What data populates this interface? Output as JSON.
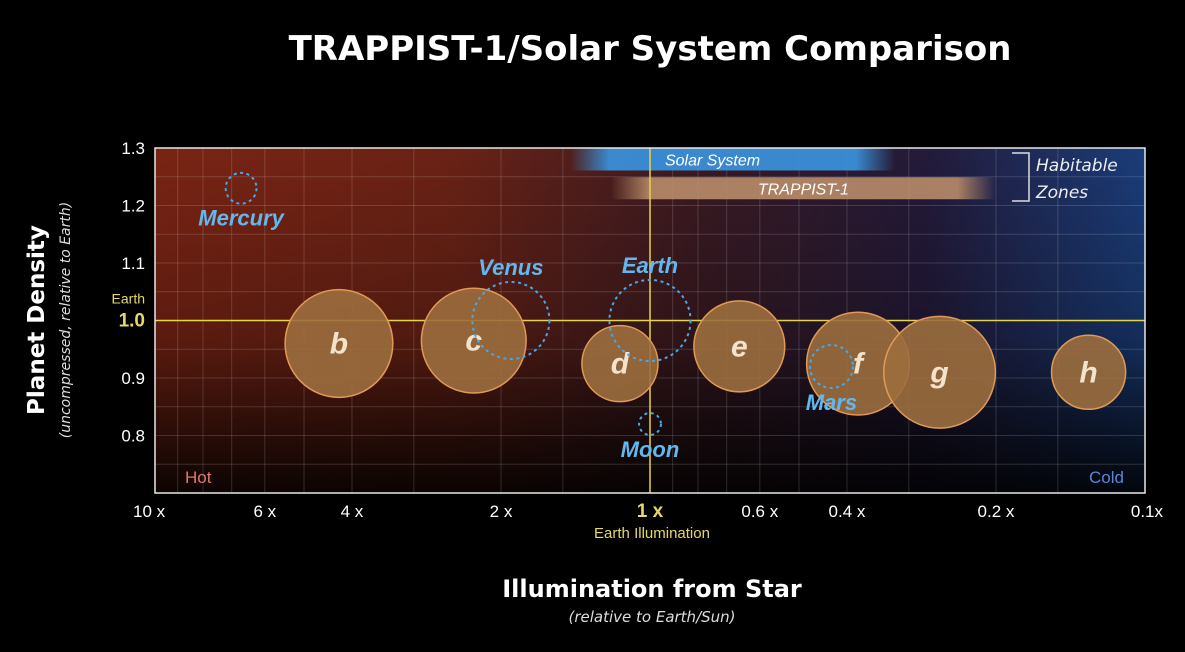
{
  "chart_data": {
    "type": "scatter",
    "title": "TRAPPIST-1/Solar System Comparison",
    "xlabel": "Illumination from Star",
    "xlabel_sub": "(relative to Earth/Sun)",
    "ylabel": "Planet Density",
    "ylabel_sub": "(uncompressed, relative to Earth)",
    "x_scale": "log",
    "x_reversed": true,
    "xlim": [
      10,
      0.1
    ],
    "ylim": [
      0.7,
      1.3
    ],
    "x_ticks": [
      {
        "value": 10,
        "label": "10 x"
      },
      {
        "value": 6,
        "label": "6 x"
      },
      {
        "value": 4,
        "label": "4 x"
      },
      {
        "value": 2,
        "label": "2 x"
      },
      {
        "value": 1,
        "label": "1 x"
      },
      {
        "value": 0.6,
        "label": "0.6 x"
      },
      {
        "value": 0.4,
        "label": "0.4 x"
      },
      {
        "value": 0.2,
        "label": "0.2 x"
      },
      {
        "value": 0.1,
        "label": "0.1x"
      }
    ],
    "x_ref_label": "Earth Illumination",
    "y_ticks": [
      {
        "value": 1.3,
        "label": "1.3"
      },
      {
        "value": 1.2,
        "label": "1.2"
      },
      {
        "value": 1.1,
        "label": "1.1"
      },
      {
        "value": 1.0,
        "label": "1.0"
      },
      {
        "value": 0.9,
        "label": "0.9"
      },
      {
        "value": 0.8,
        "label": "0.8"
      }
    ],
    "y_ref_label": "Earth",
    "grid": true,
    "hot_label": "Hot",
    "cold_label": "Cold",
    "habitable_zones": {
      "label_line1": "Habitable",
      "label_line2": "Zones",
      "bands": [
        {
          "name": "Solar System",
          "from": 1.45,
          "to": 0.32,
          "color": "#3a8fd8"
        },
        {
          "name": "TRAPPIST-1",
          "from": 1.2,
          "to": 0.2,
          "color": "#b98c6a"
        }
      ]
    },
    "series": [
      {
        "name": "TRAPPIST-1",
        "style": "filled",
        "color": "#9c6e3e",
        "points": [
          {
            "label": "b",
            "x": 4.25,
            "y": 0.96,
            "size": 1.09
          },
          {
            "label": "c",
            "x": 2.27,
            "y": 0.965,
            "size": 1.06
          },
          {
            "label": "d",
            "x": 1.15,
            "y": 0.925,
            "size": 0.77
          },
          {
            "label": "e",
            "x": 0.66,
            "y": 0.955,
            "size": 0.92
          },
          {
            "label": "f",
            "x": 0.38,
            "y": 0.925,
            "size": 1.04
          },
          {
            "label": "g",
            "x": 0.26,
            "y": 0.91,
            "size": 1.13
          },
          {
            "label": "h",
            "x": 0.13,
            "y": 0.91,
            "size": 0.75
          }
        ]
      },
      {
        "name": "Solar System",
        "style": "dashed",
        "color": "#4aa6e6",
        "points": [
          {
            "label": "Mercury",
            "x": 6.7,
            "y": 1.23,
            "size": 0.38,
            "label_pos": "below"
          },
          {
            "label": "Venus",
            "x": 1.91,
            "y": 1.0,
            "size": 0.95,
            "label_pos": "above"
          },
          {
            "label": "Earth",
            "x": 1.0,
            "y": 1.0,
            "size": 1.0,
            "label_pos": "above"
          },
          {
            "label": "Mars",
            "x": 0.43,
            "y": 0.92,
            "size": 0.53,
            "label_pos": "below"
          },
          {
            "label": "Moon",
            "x": 1.0,
            "y": 0.82,
            "size": 0.27,
            "label_pos": "below"
          }
        ]
      }
    ]
  }
}
